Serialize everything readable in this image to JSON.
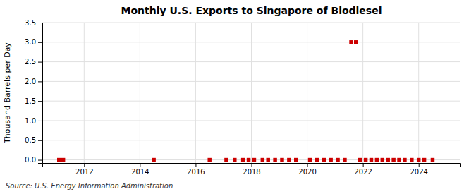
{
  "chart_data": {
    "type": "scatter",
    "title": "Monthly U.S. Exports to Singapore of Biodiesel",
    "ylabel": "Thousand Barrels per Day",
    "annotations": [
      "Source: U.S. Energy Information Administration"
    ],
    "color": "#cc0000",
    "marker": "square",
    "grid": true,
    "xlim": [
      2010.5,
      2025.5
    ],
    "ylim": [
      -0.08,
      3.5
    ],
    "xticks": [
      2012,
      2014,
      2016,
      2018,
      2020,
      2022,
      2024
    ],
    "yticks": [
      {
        "value": 0.0,
        "label": "0.0"
      },
      0.5,
      {
        "value": 1.0,
        "label": "1.0"
      },
      1.5,
      {
        "value": 2.0,
        "label": "2.0"
      },
      2.5,
      {
        "value": 3.0,
        "label": "3.0"
      },
      3.5
    ],
    "x": [
      2011.1,
      2011.25,
      2014.5,
      2016.5,
      2017.1,
      2017.4,
      2017.7,
      2017.9,
      2018.1,
      2018.4,
      2018.6,
      2018.85,
      2019.1,
      2019.35,
      2019.6,
      2020.1,
      2020.35,
      2020.6,
      2020.85,
      2021.1,
      2021.35,
      2021.58,
      2021.75,
      2021.9,
      2022.1,
      2022.3,
      2022.5,
      2022.7,
      2022.9,
      2023.1,
      2023.3,
      2023.5,
      2023.75,
      2024.0,
      2024.2,
      2024.5
    ],
    "values": [
      0.0,
      0.0,
      0.0,
      0.0,
      0.0,
      0.0,
      0.0,
      0.0,
      0.0,
      0.0,
      0.0,
      0.0,
      0.0,
      0.0,
      0.0,
      0.0,
      0.0,
      0.0,
      0.0,
      0.0,
      0.0,
      3.0,
      3.0,
      0.0,
      0.0,
      0.0,
      0.0,
      0.0,
      0.0,
      0.0,
      0.0,
      0.0,
      0.0,
      0.0,
      0.0,
      0.0
    ]
  }
}
